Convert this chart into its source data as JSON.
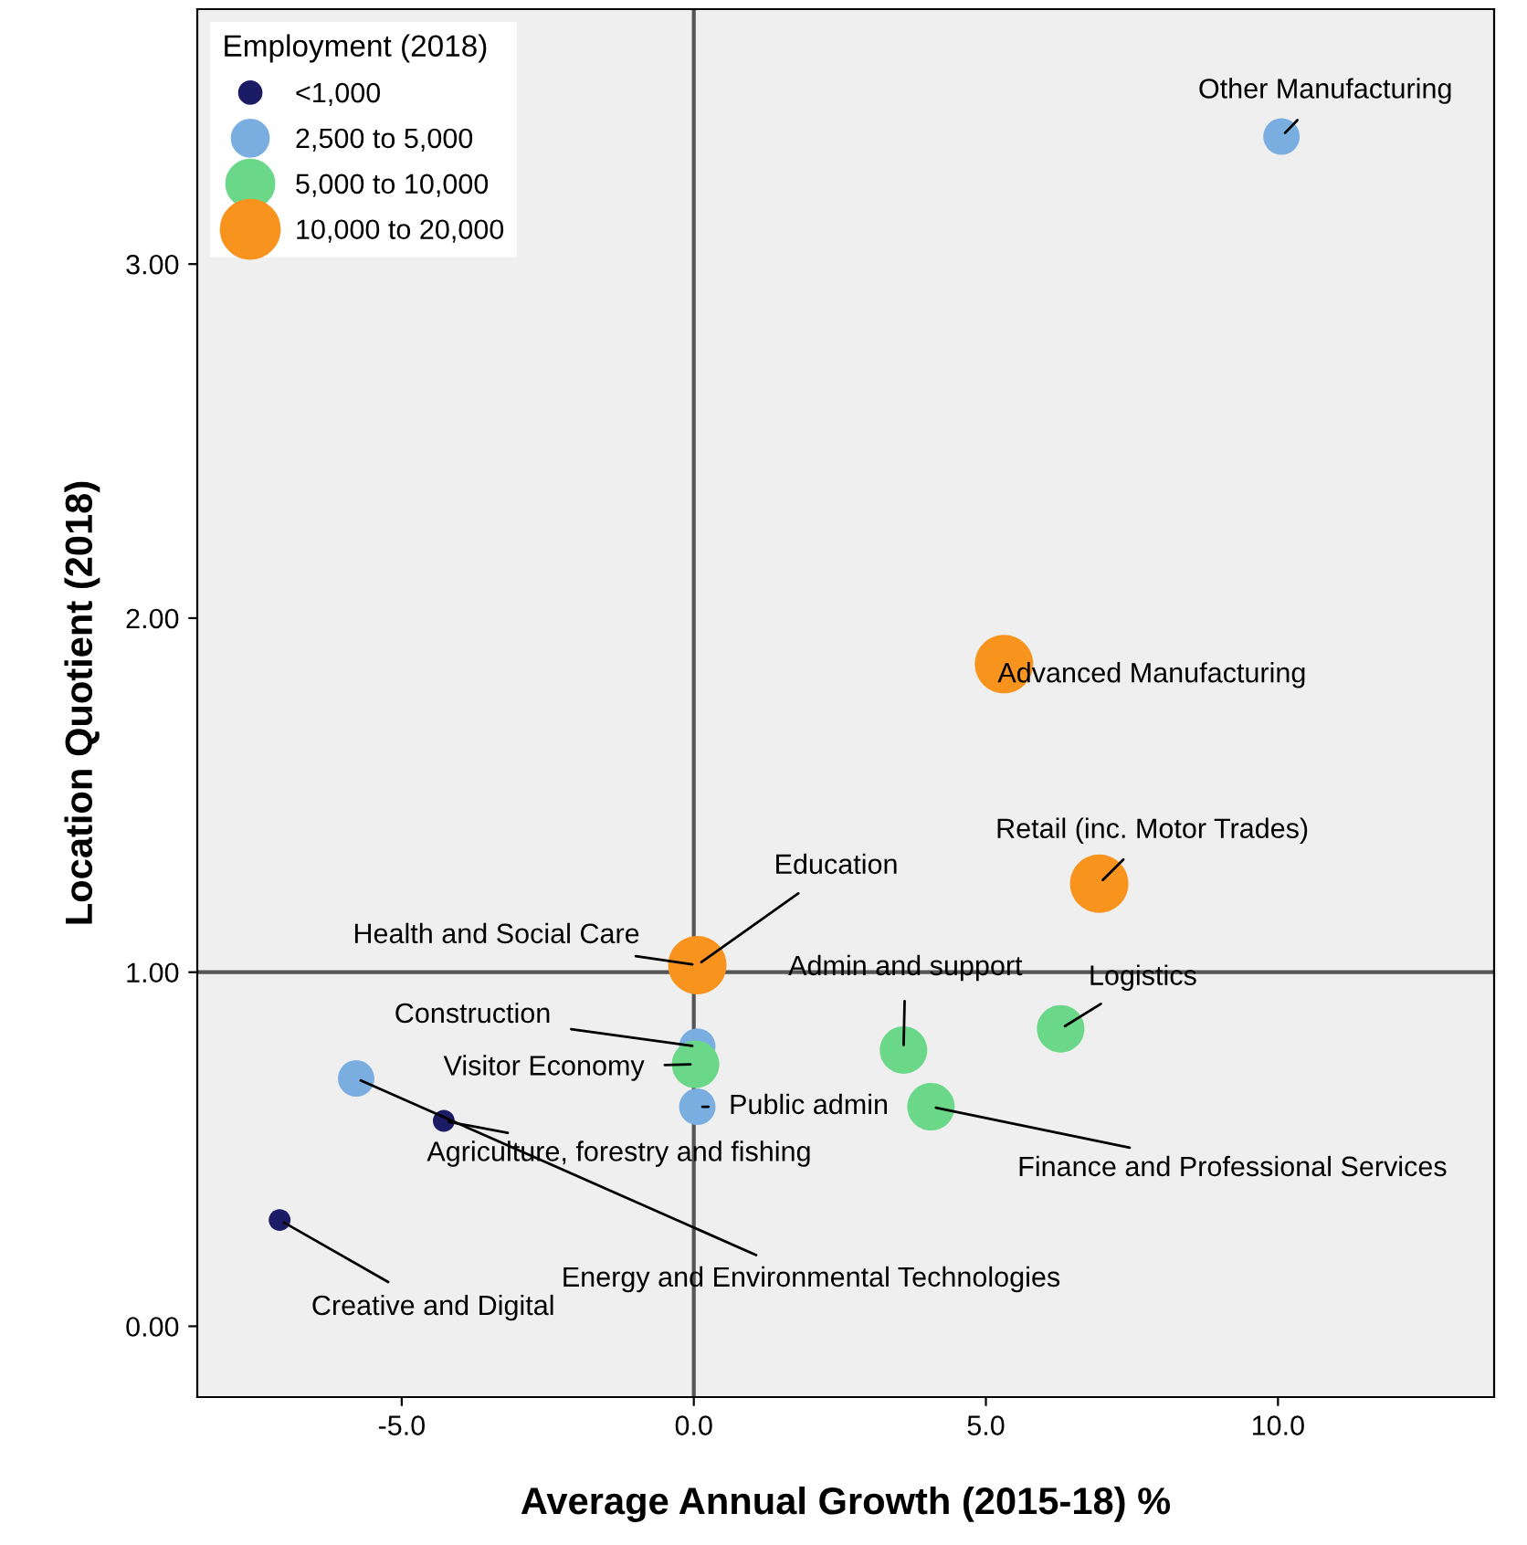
{
  "chart_data": {
    "type": "bubble",
    "xlabel": "Average Annual Growth (2015-18) %",
    "ylabel": "Location Quotient (2018)",
    "legend_title": "Employment (2018)",
    "legend": "top left",
    "grid": false,
    "xlim": [
      -8.5,
      13.7
    ],
    "ylim": [
      -0.2,
      3.72
    ],
    "xticks": [
      {
        "value": -5,
        "label": "-5.0"
      },
      {
        "value": 0,
        "label": "0.0"
      },
      {
        "value": 5,
        "label": "5.0"
      },
      {
        "value": 10,
        "label": "10.0"
      }
    ],
    "yticks": [
      {
        "value": 0,
        "label": "0.00"
      },
      {
        "value": 1,
        "label": "1.00"
      },
      {
        "value": 2,
        "label": "2.00"
      },
      {
        "value": 3,
        "label": "3.00"
      }
    ],
    "ref_lines": [
      {
        "axis": "x",
        "value": 0,
        "label": null,
        "color": "#555555"
      },
      {
        "axis": "y",
        "value": 1,
        "label": null,
        "color": "#555555"
      }
    ],
    "series": [
      {
        "name": "<1,000",
        "color": "#1c1c66",
        "x": [
          -4.28,
          -7.09
        ],
        "values": [
          0.58,
          0.3
        ],
        "sizes": [
          0.14,
          0.14
        ]
      },
      {
        "name": "2,500 to 5,000",
        "color": "#7aaee0",
        "x": [
          10.06,
          0.06,
          0.06,
          -5.78
        ],
        "values": [
          3.36,
          0.79,
          0.62,
          0.7
        ],
        "sizes": [
          0.39,
          0.39,
          0.39,
          0.39
        ]
      },
      {
        "name": "5,000 to 10,000",
        "color": "#6ad888",
        "x": [
          6.28,
          3.59,
          4.06,
          0.03
        ],
        "values": [
          0.84,
          0.78,
          0.62,
          0.74
        ],
        "sizes": [
          0.66,
          0.66,
          0.66,
          0.66
        ]
      },
      {
        "name": "10,000 to 20,000",
        "color": "#f8931e",
        "x": [
          5.31,
          6.94,
          0.06
        ],
        "values": [
          1.87,
          1.25,
          1.02
        ],
        "sizes": [
          1,
          1,
          1
        ]
      }
    ],
    "annotations": [
      {
        "text": "Other Manufacturing",
        "x": 10.06,
        "y": 3.36
      },
      {
        "text": "Advanced Manufacturing",
        "x": 5.31,
        "y": 1.87
      },
      {
        "text": "Retail (inc. Motor Trades)",
        "x": 6.94,
        "y": 1.25
      },
      {
        "text": "Education",
        "x": 0.06,
        "y": 1.02
      },
      {
        "text": "Health and Social Care",
        "x": 0.06,
        "y": 1.02
      },
      {
        "text": "Logistics",
        "x": 6.28,
        "y": 0.84
      },
      {
        "text": "Admin and support",
        "x": 3.59,
        "y": 0.78
      },
      {
        "text": "Finance and Professional Services",
        "x": 4.06,
        "y": 0.62
      },
      {
        "text": "Construction",
        "x": 0.06,
        "y": 0.79
      },
      {
        "text": "Visitor Economy",
        "x": 0.03,
        "y": 0.74
      },
      {
        "text": "Public admin",
        "x": 0.06,
        "y": 0.62
      },
      {
        "text": "Agriculture, forestry and fishing",
        "x": -4.28,
        "y": 0.58
      },
      {
        "text": "Energy and Environmental Technologies",
        "x": -5.78,
        "y": 0.7
      },
      {
        "text": "Creative and Digital",
        "x": -7.09,
        "y": 0.3
      }
    ]
  }
}
